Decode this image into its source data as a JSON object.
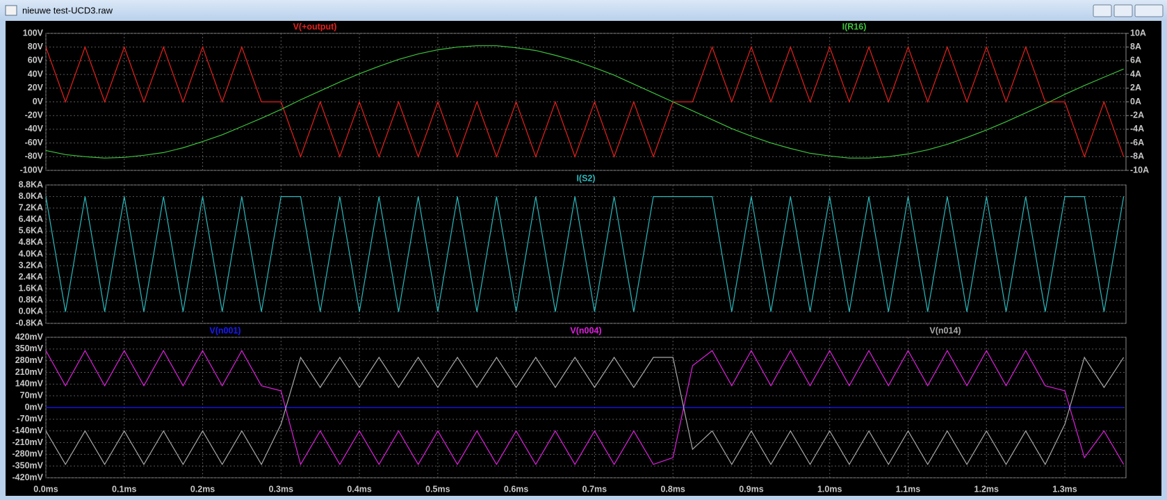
{
  "window": {
    "title": "nieuwe test-UCD3.raw"
  },
  "chart_data": [
    {
      "type": "line",
      "x": [
        0,
        0.025,
        0.05,
        0.075,
        0.1,
        0.125,
        0.15,
        0.175,
        0.2,
        0.225,
        0.25,
        0.275,
        0.3,
        0.325,
        0.35,
        0.375,
        0.4,
        0.425,
        0.45,
        0.475,
        0.5,
        0.525,
        0.55,
        0.575,
        0.6,
        0.625,
        0.65,
        0.675,
        0.7,
        0.725,
        0.75,
        0.775,
        0.8,
        0.825,
        0.85,
        0.875,
        0.9,
        0.925,
        0.95,
        0.975,
        1,
        1.025,
        1.05,
        1.075,
        1.1,
        1.125,
        1.15,
        1.175,
        1.2,
        1.225,
        1.25,
        1.275,
        1.3,
        1.325,
        1.35,
        1.375
      ],
      "xlim": [
        0,
        1.378
      ],
      "ylim": [
        -100,
        100
      ],
      "yticks": [
        {
          "value": 100,
          "label": "100V"
        },
        {
          "value": 80,
          "label": "80V"
        },
        {
          "value": 60,
          "label": "60V"
        },
        {
          "value": 40,
          "label": "40V"
        },
        {
          "value": 20,
          "label": "20V"
        },
        {
          "value": 0,
          "label": "0V"
        },
        {
          "value": -20,
          "label": "-20V"
        },
        {
          "value": -40,
          "label": "-40V"
        },
        {
          "value": -60,
          "label": "-60V"
        },
        {
          "value": -80,
          "label": "-80V"
        },
        {
          "value": -100,
          "label": "-100V"
        }
      ],
      "y2lim": [
        -10,
        10
      ],
      "y2ticks": [
        {
          "value": 10,
          "label": "10A"
        },
        {
          "value": 8,
          "label": "8A"
        },
        {
          "value": 6,
          "label": "6A"
        },
        {
          "value": 4,
          "label": "4A"
        },
        {
          "value": 2,
          "label": "2A"
        },
        {
          "value": 0,
          "label": "0A"
        },
        {
          "value": -2,
          "label": "-2A"
        },
        {
          "value": -4,
          "label": "-4A"
        },
        {
          "value": -6,
          "label": "-6A"
        },
        {
          "value": -8,
          "label": "-8A"
        },
        {
          "value": -10,
          "label": "-10A"
        }
      ],
      "grid": true,
      "series": [
        {
          "name": "V(+output)",
          "color": "#e8201c",
          "values": [
            80,
            0,
            80,
            0,
            80,
            0,
            80,
            0,
            80,
            0,
            80,
            0,
            0,
            -80,
            0,
            -80,
            0,
            -80,
            0,
            -80,
            0,
            -80,
            0,
            -80,
            0,
            -80,
            0,
            -80,
            0,
            -80,
            0,
            -80,
            0,
            0,
            80,
            0,
            80,
            0,
            80,
            0,
            80,
            0,
            80,
            0,
            80,
            0,
            80,
            0,
            80,
            0,
            80,
            0,
            0,
            -80,
            0,
            -80
          ]
        },
        {
          "name": "I(R16)",
          "color": "#3cc43c",
          "axis": "y2",
          "values": [
            -7.1,
            -7.7,
            -8.0,
            -8.2,
            -8.1,
            -7.8,
            -7.4,
            -6.7,
            -5.8,
            -4.8,
            -3.6,
            -2.4,
            -1.1,
            0.3,
            1.6,
            2.9,
            4.1,
            5.2,
            6.2,
            7.0,
            7.6,
            8.0,
            8.2,
            8.2,
            7.9,
            7.5,
            6.8,
            6.0,
            5.0,
            3.9,
            2.6,
            1.3,
            0,
            -1.3,
            -2.6,
            -3.9,
            -5.0,
            -6.0,
            -6.8,
            -7.5,
            -7.9,
            -8.2,
            -8.2,
            -8.0,
            -7.6,
            -7.0,
            -6.2,
            -5.2,
            -4.1,
            -2.9,
            -1.6,
            -0.3,
            1.1,
            2.4,
            3.6,
            4.8
          ]
        }
      ]
    },
    {
      "type": "line",
      "x": [
        0,
        0.025,
        0.05,
        0.075,
        0.1,
        0.125,
        0.15,
        0.175,
        0.2,
        0.225,
        0.25,
        0.275,
        0.3,
        0.325,
        0.35,
        0.375,
        0.4,
        0.425,
        0.45,
        0.475,
        0.5,
        0.525,
        0.55,
        0.575,
        0.6,
        0.625,
        0.65,
        0.675,
        0.7,
        0.725,
        0.75,
        0.775,
        0.8,
        0.825,
        0.85,
        0.875,
        0.9,
        0.925,
        0.95,
        0.975,
        1,
        1.025,
        1.05,
        1.075,
        1.1,
        1.125,
        1.15,
        1.175,
        1.2,
        1.225,
        1.25,
        1.275,
        1.3,
        1.325,
        1.35,
        1.375
      ],
      "xlim": [
        0,
        1.378
      ],
      "ylim": [
        -0.8,
        8.8
      ],
      "yticks": [
        {
          "value": 8.8,
          "label": "8.8KA"
        },
        {
          "value": 8,
          "label": "8.0KA"
        },
        {
          "value": 7.2,
          "label": "7.2KA"
        },
        {
          "value": 6.4,
          "label": "6.4KA"
        },
        {
          "value": 5.6,
          "label": "5.6KA"
        },
        {
          "value": 4.8,
          "label": "4.8KA"
        },
        {
          "value": 4,
          "label": "4.0KA"
        },
        {
          "value": 3.2,
          "label": "3.2KA"
        },
        {
          "value": 2.4,
          "label": "2.4KA"
        },
        {
          "value": 1.6,
          "label": "1.6KA"
        },
        {
          "value": 0.8,
          "label": "0.8KA"
        },
        {
          "value": 0,
          "label": "0.0KA"
        },
        {
          "value": -0.8,
          "label": "-0.8KA"
        }
      ],
      "grid": true,
      "series": [
        {
          "name": "I(S2)",
          "color": "#2ab8bc",
          "values": [
            8,
            0,
            8,
            0,
            8,
            0,
            8,
            0,
            8,
            0,
            8,
            0,
            8,
            8,
            0,
            8,
            0,
            8,
            0,
            8,
            0,
            8,
            0,
            8,
            0,
            8,
            0,
            8,
            0,
            8,
            0,
            8,
            8,
            8,
            8,
            0,
            8,
            0,
            8,
            0,
            8,
            0,
            8,
            0,
            8,
            0,
            8,
            0,
            8,
            0,
            8,
            0,
            8,
            8,
            0,
            8
          ]
        }
      ]
    },
    {
      "type": "line",
      "x": [
        0,
        0.025,
        0.05,
        0.075,
        0.1,
        0.125,
        0.15,
        0.175,
        0.2,
        0.225,
        0.25,
        0.275,
        0.3,
        0.325,
        0.35,
        0.375,
        0.4,
        0.425,
        0.45,
        0.475,
        0.5,
        0.525,
        0.55,
        0.575,
        0.6,
        0.625,
        0.65,
        0.675,
        0.7,
        0.725,
        0.75,
        0.775,
        0.8,
        0.825,
        0.85,
        0.875,
        0.9,
        0.925,
        0.95,
        0.975,
        1,
        1.025,
        1.05,
        1.075,
        1.1,
        1.125,
        1.15,
        1.175,
        1.2,
        1.225,
        1.25,
        1.275,
        1.3,
        1.325,
        1.35,
        1.375
      ],
      "xlim": [
        0,
        1.378
      ],
      "xticks": [
        {
          "value": 0,
          "label": "0.0ms"
        },
        {
          "value": 0.1,
          "label": "0.1ms"
        },
        {
          "value": 0.2,
          "label": "0.2ms"
        },
        {
          "value": 0.3,
          "label": "0.3ms"
        },
        {
          "value": 0.4,
          "label": "0.4ms"
        },
        {
          "value": 0.5,
          "label": "0.5ms"
        },
        {
          "value": 0.6,
          "label": "0.6ms"
        },
        {
          "value": 0.7,
          "label": "0.7ms"
        },
        {
          "value": 0.8,
          "label": "0.8ms"
        },
        {
          "value": 0.9,
          "label": "0.9ms"
        },
        {
          "value": 1,
          "label": "1.0ms"
        },
        {
          "value": 1.1,
          "label": "1.1ms"
        },
        {
          "value": 1.2,
          "label": "1.2ms"
        },
        {
          "value": 1.3,
          "label": "1.3ms"
        }
      ],
      "ylim": [
        -420,
        420
      ],
      "yticks": [
        {
          "value": 420,
          "label": "420mV"
        },
        {
          "value": 350,
          "label": "350mV"
        },
        {
          "value": 280,
          "label": "280mV"
        },
        {
          "value": 210,
          "label": "210mV"
        },
        {
          "value": 140,
          "label": "140mV"
        },
        {
          "value": 70,
          "label": "70mV"
        },
        {
          "value": 0,
          "label": "0mV"
        },
        {
          "value": -70,
          "label": "-70mV"
        },
        {
          "value": -140,
          "label": "-140mV"
        },
        {
          "value": -210,
          "label": "-210mV"
        },
        {
          "value": -280,
          "label": "-280mV"
        },
        {
          "value": -350,
          "label": "-350mV"
        },
        {
          "value": -420,
          "label": "-420mV"
        }
      ],
      "grid": true,
      "series": [
        {
          "name": "V(n001)",
          "color": "#1a1aff",
          "values": [
            0,
            0,
            0,
            0,
            0,
            0,
            0,
            0,
            0,
            0,
            0,
            0,
            0,
            0,
            0,
            0,
            0,
            0,
            0,
            0,
            0,
            0,
            0,
            0,
            0,
            0,
            0,
            0,
            0,
            0,
            0,
            0,
            0,
            0,
            0,
            0,
            0,
            0,
            0,
            0,
            0,
            0,
            0,
            0,
            0,
            0,
            0,
            0,
            0,
            0,
            0,
            0,
            0,
            0,
            0,
            0
          ]
        },
        {
          "name": "V(n004)",
          "color": "#e020e0",
          "values": [
            340,
            130,
            340,
            130,
            340,
            130,
            340,
            130,
            340,
            130,
            340,
            130,
            100,
            -340,
            -140,
            -340,
            -140,
            -340,
            -140,
            -340,
            -140,
            -340,
            -140,
            -340,
            -140,
            -340,
            -140,
            -340,
            -140,
            -340,
            -140,
            -340,
            -300,
            250,
            340,
            130,
            340,
            130,
            340,
            130,
            340,
            130,
            340,
            130,
            340,
            130,
            340,
            130,
            340,
            130,
            340,
            130,
            100,
            -300,
            -140,
            -340
          ]
        },
        {
          "name": "V(n014)",
          "color": "#a8a8a8",
          "values": [
            -140,
            -340,
            -140,
            -340,
            -140,
            -340,
            -140,
            -340,
            -140,
            -340,
            -140,
            -340,
            -100,
            300,
            120,
            300,
            120,
            300,
            120,
            300,
            120,
            300,
            120,
            300,
            120,
            300,
            120,
            300,
            120,
            300,
            120,
            300,
            300,
            -250,
            -140,
            -340,
            -140,
            -340,
            -140,
            -340,
            -140,
            -340,
            -140,
            -340,
            -140,
            -340,
            -140,
            -340,
            -140,
            -340,
            -140,
            -340,
            -100,
            300,
            120,
            300
          ]
        }
      ]
    }
  ]
}
